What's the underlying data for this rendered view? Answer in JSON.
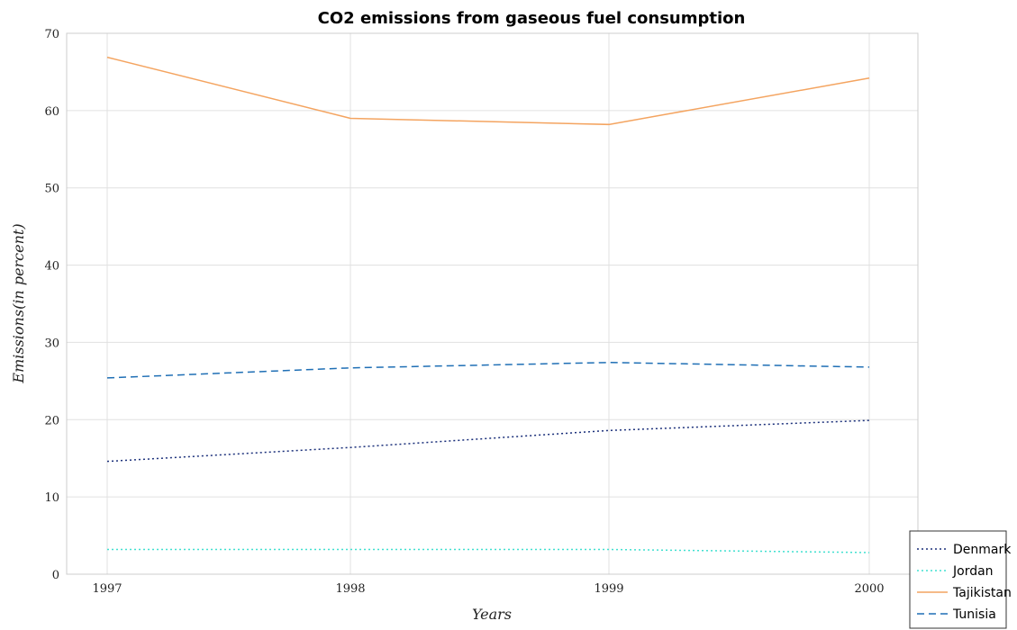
{
  "chart_data": {
    "type": "line",
    "title": "CO2 emissions from gaseous fuel consumption",
    "xlabel": "Years",
    "ylabel": "Emissions(in percent)",
    "x": [
      1997,
      1998,
      1999,
      2000
    ],
    "x_tick_labels": [
      "1997",
      "1998",
      "1999",
      "2000"
    ],
    "ylim": [
      0,
      70
    ],
    "y_ticks": [
      0,
      10,
      20,
      30,
      40,
      50,
      60,
      70
    ],
    "y_tick_labels": [
      "0",
      "10",
      "20",
      "30",
      "40",
      "50",
      "60",
      "70"
    ],
    "grid": true,
    "legend_position": "bottom-right",
    "series": [
      {
        "name": "Denmark",
        "values": [
          14.6,
          16.4,
          18.6,
          19.9
        ],
        "color": "#1a2f7a",
        "dash": "2,3"
      },
      {
        "name": "Jordan",
        "values": [
          3.2,
          3.2,
          3.2,
          2.8
        ],
        "color": "#40e0d0",
        "dash": "2,3"
      },
      {
        "name": "Tajikistan",
        "values": [
          66.9,
          59.0,
          58.2,
          64.2
        ],
        "color": "#f4a460",
        "dash": ""
      },
      {
        "name": "Tunisia",
        "values": [
          25.4,
          26.7,
          27.4,
          26.8
        ],
        "color": "#1f6fb5",
        "dash": "8,5"
      }
    ]
  }
}
